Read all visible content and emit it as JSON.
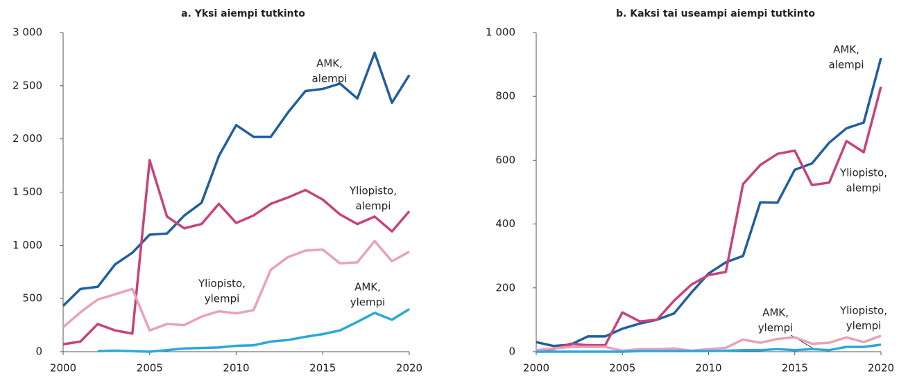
{
  "chart_data": [
    {
      "type": "line",
      "title": "a. Yksi aiempi tutkinto",
      "x": [
        2000,
        2001,
        2002,
        2003,
        2004,
        2005,
        2006,
        2007,
        2008,
        2009,
        2010,
        2011,
        2012,
        2013,
        2014,
        2015,
        2016,
        2017,
        2018,
        2019,
        2020
      ],
      "xlim": [
        2000,
        2020
      ],
      "xticks": [
        2000,
        2005,
        2010,
        2015,
        2020
      ],
      "ylim": [
        0,
        3000
      ],
      "yticks": [
        0,
        500,
        {
          "value": 1000,
          "label": "1 000"
        },
        {
          "value": 1500,
          "label": "1 500"
        },
        {
          "value": 2000,
          "label": "2 000"
        },
        {
          "value": 2500,
          "label": "2 500"
        },
        {
          "value": 3000,
          "label": "3 000"
        }
      ],
      "series": [
        {
          "annotation": [
            "AMK,",
            "alempi"
          ],
          "color": "#1f5fa0",
          "values": [
            430,
            590,
            610,
            820,
            930,
            1100,
            1110,
            1280,
            1400,
            1840,
            2130,
            2020,
            2020,
            2250,
            2450,
            2470,
            2520,
            2380,
            2810,
            2340,
            2600
          ]
        },
        {
          "annotation": [
            "Yliopisto,",
            "alempi"
          ],
          "color": "#c8427a",
          "values": [
            70,
            95,
            260,
            200,
            170,
            1800,
            1270,
            1160,
            1200,
            1390,
            1210,
            1280,
            1390,
            1450,
            1520,
            1430,
            1290,
            1200,
            1270,
            1130,
            1320
          ]
        },
        {
          "annotation": [
            "Yliopisto,",
            "ylempi"
          ],
          "color": "#eaa0bc",
          "values": [
            230,
            370,
            490,
            540,
            590,
            200,
            260,
            250,
            330,
            380,
            360,
            390,
            770,
            890,
            950,
            960,
            830,
            840,
            1040,
            850,
            940
          ]
        },
        {
          "annotation": [
            "AMK,",
            "ylempi"
          ],
          "color": "#2aa8dc",
          "values": [
            null,
            null,
            5,
            10,
            5,
            0,
            15,
            30,
            35,
            40,
            55,
            60,
            95,
            110,
            140,
            165,
            200,
            280,
            365,
            300,
            400
          ]
        }
      ]
    },
    {
      "type": "line",
      "title": "b. Kaksi tai useampi aiempi tutkinto",
      "x": [
        2000,
        2001,
        2002,
        2003,
        2004,
        2005,
        2006,
        2007,
        2008,
        2009,
        2010,
        2011,
        2012,
        2013,
        2014,
        2015,
        2016,
        2017,
        2018,
        2019,
        2020
      ],
      "xlim": [
        2000,
        2020
      ],
      "xticks": [
        2000,
        2005,
        2010,
        2015,
        2020
      ],
      "ylim": [
        0,
        1000
      ],
      "yticks": [
        0,
        200,
        400,
        600,
        800,
        {
          "value": 1000,
          "label": "1 000"
        }
      ],
      "series": [
        {
          "annotation": [
            "AMK,",
            "alempi"
          ],
          "color": "#1f5fa0",
          "values": [
            30,
            18,
            22,
            48,
            48,
            72,
            88,
            100,
            120,
            185,
            245,
            280,
            300,
            468,
            467,
            570,
            590,
            655,
            700,
            718,
            920
          ]
        },
        {
          "annotation": [
            "Yliopisto,",
            "alempi"
          ],
          "color": "#c8427a",
          "values": [
            3,
            8,
            25,
            20,
            20,
            123,
            95,
            100,
            160,
            210,
            240,
            250,
            525,
            585,
            620,
            630,
            522,
            530,
            660,
            625,
            830
          ]
        },
        {
          "annotation": [
            "Yliopisto,",
            "ylempi"
          ],
          "color": "#eaa0bc",
          "values": [
            5,
            10,
            15,
            15,
            15,
            3,
            8,
            8,
            10,
            3,
            8,
            12,
            38,
            28,
            40,
            45,
            25,
            28,
            45,
            30,
            50
          ]
        },
        {
          "annotation": [
            "AMK,",
            "ylempi"
          ],
          "color": "#2aa8dc",
          "values": [
            0,
            0,
            0,
            0,
            0,
            0,
            2,
            2,
            2,
            2,
            2,
            3,
            5,
            5,
            8,
            5,
            8,
            5,
            15,
            15,
            22
          ]
        }
      ]
    }
  ]
}
